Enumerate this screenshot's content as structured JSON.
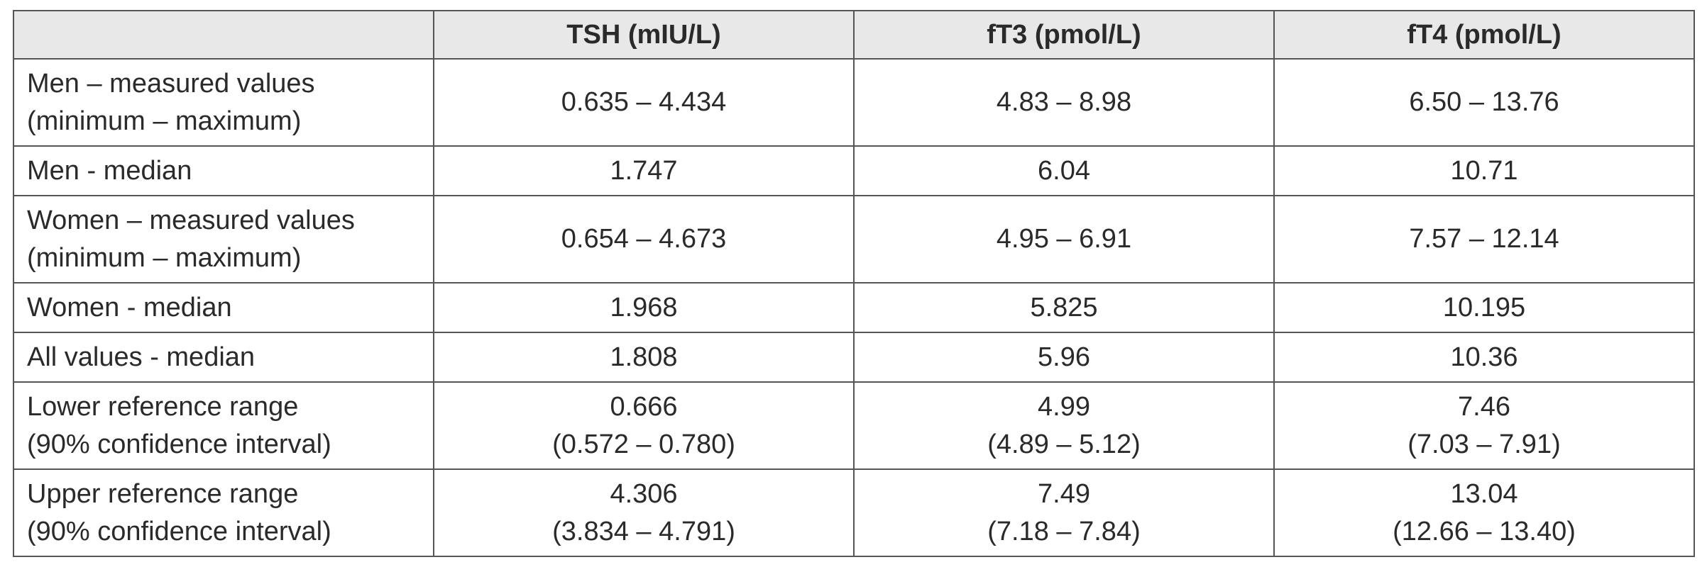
{
  "header": {
    "corner": "",
    "columns": [
      "TSH (mIU/L)",
      "fT3 (pmol/L)",
      "fT4 (pmol/L)"
    ]
  },
  "rows": [
    {
      "label": [
        "Men – measured values",
        "(minimum – maximum)"
      ],
      "values": [
        [
          "0.635 – 4.434"
        ],
        [
          "4.83 – 8.98"
        ],
        [
          "6.50 – 13.76"
        ]
      ]
    },
    {
      "label": [
        "Men - median"
      ],
      "values": [
        [
          "1.747"
        ],
        [
          "6.04"
        ],
        [
          "10.71"
        ]
      ]
    },
    {
      "label": [
        "Women – measured values",
        "(minimum – maximum)"
      ],
      "values": [
        [
          "0.654 – 4.673"
        ],
        [
          "4.95 – 6.91"
        ],
        [
          "7.57 – 12.14"
        ]
      ]
    },
    {
      "label": [
        "Women - median"
      ],
      "values": [
        [
          "1.968"
        ],
        [
          "5.825"
        ],
        [
          "10.195"
        ]
      ]
    },
    {
      "label": [
        "All values - median"
      ],
      "values": [
        [
          "1.808"
        ],
        [
          "5.96"
        ],
        [
          "10.36"
        ]
      ]
    },
    {
      "label": [
        "Lower reference range",
        "(90% confidence interval)"
      ],
      "values": [
        [
          "0.666",
          "(0.572 – 0.780)"
        ],
        [
          "4.99",
          "(4.89 – 5.12)"
        ],
        [
          "7.46",
          "(7.03 – 7.91)"
        ]
      ]
    },
    {
      "label": [
        "Upper reference range",
        "(90% confidence interval)"
      ],
      "values": [
        [
          "4.306",
          "(3.834 – 4.791)"
        ],
        [
          "7.49",
          "(7.18 – 7.84)"
        ],
        [
          "13.04",
          "(12.66 – 13.40)"
        ]
      ]
    }
  ]
}
